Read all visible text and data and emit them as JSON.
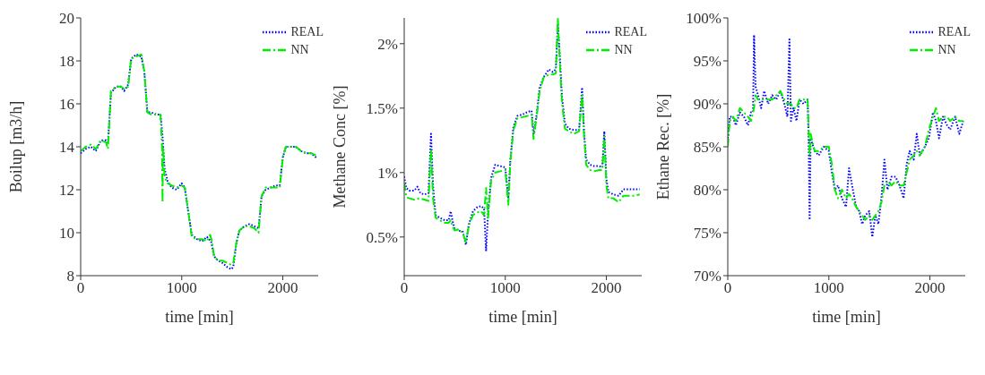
{
  "chart_data": [
    {
      "type": "line",
      "xlabel": "time [min]",
      "ylabel": "Boilup [m3/h]",
      "xlim": [
        0,
        2350
      ],
      "xticks": [
        0,
        1000,
        2000
      ],
      "ylim": [
        8,
        20
      ],
      "yticks": [
        8,
        10,
        12,
        14,
        16,
        18,
        20
      ],
      "legend": "top right",
      "marker": "none",
      "series": [
        {
          "name": "REAL",
          "color": "#0000ff",
          "line_style": "dotted",
          "x": [
            0,
            50,
            100,
            150,
            200,
            250,
            270,
            300,
            350,
            400,
            430,
            470,
            500,
            550,
            600,
            630,
            660,
            700,
            750,
            790,
            810,
            830,
            860,
            900,
            950,
            1000,
            1030,
            1070,
            1100,
            1150,
            1200,
            1250,
            1290,
            1320,
            1360,
            1400,
            1450,
            1490,
            1510,
            1540,
            1570,
            1620,
            1670,
            1720,
            1760,
            1790,
            1830,
            1880,
            1930,
            1970,
            2000,
            2030,
            2080,
            2130,
            2180,
            2230,
            2280,
            2330
          ],
          "values": [
            13.7,
            13.9,
            14.0,
            13.8,
            14.3,
            14.3,
            14.2,
            16.5,
            16.8,
            16.8,
            16.6,
            16.9,
            18.1,
            18.3,
            18.2,
            17.5,
            15.6,
            15.6,
            15.5,
            15.5,
            14.5,
            13.0,
            12.4,
            12.1,
            12.0,
            12.3,
            12.1,
            10.8,
            9.9,
            9.7,
            9.6,
            9.8,
            9.6,
            8.9,
            8.7,
            8.6,
            8.4,
            8.3,
            8.4,
            9.5,
            10.1,
            10.3,
            10.4,
            10.3,
            10.2,
            11.7,
            12.0,
            12.1,
            12.2,
            12.2,
            13.5,
            14.0,
            14.0,
            14.0,
            13.8,
            13.7,
            13.7,
            13.5
          ]
        },
        {
          "name": "NN",
          "color": "#00ee00",
          "line_style": "dashed",
          "x": [
            0,
            50,
            100,
            150,
            200,
            250,
            270,
            300,
            350,
            400,
            430,
            470,
            500,
            550,
            600,
            630,
            660,
            700,
            750,
            790,
            805,
            810,
            815,
            830,
            860,
            900,
            950,
            1000,
            1030,
            1070,
            1100,
            1150,
            1200,
            1250,
            1280,
            1300,
            1320,
            1360,
            1400,
            1450,
            1490,
            1510,
            1540,
            1570,
            1620,
            1670,
            1720,
            1760,
            1790,
            1830,
            1880,
            1930,
            1970,
            2000,
            2030,
            2080,
            2130,
            2180,
            2230,
            2280,
            2330
          ],
          "values": [
            13.8,
            14.0,
            14.1,
            13.9,
            14.3,
            14.2,
            13.9,
            16.6,
            16.8,
            16.8,
            16.7,
            16.8,
            18.1,
            18.2,
            18.3,
            17.5,
            15.6,
            15.5,
            15.5,
            15.5,
            14.0,
            11.4,
            14.0,
            12.6,
            12.3,
            12.2,
            12.1,
            12.2,
            12.1,
            10.8,
            9.8,
            9.7,
            9.7,
            9.6,
            9.9,
            9.6,
            8.9,
            8.7,
            8.7,
            8.6,
            8.5,
            8.6,
            9.5,
            10.1,
            10.3,
            10.3,
            10.2,
            10.0,
            11.7,
            12.1,
            12.1,
            12.1,
            12.1,
            13.5,
            14.0,
            14.0,
            14.0,
            13.8,
            13.7,
            13.7,
            13.6
          ]
        }
      ]
    },
    {
      "type": "line",
      "xlabel": "time [min]",
      "ylabel": "Methane Conc [%]",
      "xlim": [
        0,
        2350
      ],
      "xticks": [
        0,
        1000,
        2000
      ],
      "ylim": [
        0.2,
        2.2
      ],
      "yticks": [
        {
          "value": 0.5,
          "label": "0.5%"
        },
        {
          "value": 1,
          "label": "1%"
        },
        {
          "value": 1.5,
          "label": "1.5%"
        },
        {
          "value": 2,
          "label": "2%"
        }
      ],
      "legend": "top right",
      "marker": "none",
      "series": [
        {
          "name": "REAL",
          "color": "#0000ff",
          "line_style": "dotted",
          "x": [
            0,
            20,
            50,
            100,
            130,
            160,
            200,
            240,
            265,
            285,
            310,
            350,
            400,
            440,
            460,
            480,
            500,
            540,
            580,
            610,
            640,
            680,
            720,
            760,
            790,
            810,
            830,
            860,
            900,
            950,
            1000,
            1030,
            1050,
            1080,
            1120,
            1170,
            1220,
            1260,
            1280,
            1310,
            1340,
            1380,
            1430,
            1470,
            1500,
            1520,
            1540,
            1560,
            1590,
            1630,
            1680,
            1730,
            1760,
            1780,
            1800,
            1840,
            1880,
            1930,
            1960,
            1980,
            2000,
            2020,
            2070,
            2120,
            2170,
            2220,
            2280,
            2330
          ],
          "values": [
            0.97,
            0.88,
            0.86,
            0.86,
            0.89,
            0.84,
            0.83,
            0.84,
            1.3,
            0.9,
            0.67,
            0.65,
            0.63,
            0.63,
            0.7,
            0.62,
            0.56,
            0.55,
            0.54,
            0.44,
            0.6,
            0.7,
            0.73,
            0.74,
            0.72,
            0.39,
            0.7,
            0.96,
            1.06,
            1.05,
            1.04,
            0.8,
            1.1,
            1.35,
            1.44,
            1.45,
            1.47,
            1.48,
            1.3,
            1.45,
            1.66,
            1.74,
            1.8,
            1.78,
            1.8,
            2.15,
            1.9,
            1.6,
            1.38,
            1.34,
            1.33,
            1.33,
            1.66,
            1.3,
            1.1,
            1.06,
            1.05,
            1.05,
            1.04,
            1.32,
            0.95,
            0.85,
            0.83,
            0.82,
            0.87,
            0.87,
            0.87,
            0.87
          ]
        },
        {
          "name": "NN",
          "color": "#00ee00",
          "line_style": "dashed",
          "x": [
            0,
            20,
            50,
            100,
            150,
            200,
            240,
            265,
            285,
            310,
            350,
            400,
            440,
            460,
            480,
            500,
            540,
            580,
            610,
            640,
            680,
            720,
            760,
            790,
            810,
            830,
            860,
            900,
            950,
            1000,
            1030,
            1050,
            1080,
            1120,
            1170,
            1220,
            1260,
            1280,
            1310,
            1340,
            1380,
            1430,
            1470,
            1500,
            1520,
            1540,
            1560,
            1590,
            1630,
            1680,
            1730,
            1760,
            1780,
            1800,
            1840,
            1880,
            1930,
            1960,
            1980,
            2000,
            2020,
            2070,
            2120,
            2170,
            2220,
            2280,
            2330
          ],
          "values": [
            0.92,
            0.81,
            0.8,
            0.79,
            0.8,
            0.79,
            0.78,
            1.18,
            0.8,
            0.65,
            0.63,
            0.61,
            0.61,
            0.63,
            0.58,
            0.55,
            0.56,
            0.53,
            0.46,
            0.59,
            0.67,
            0.69,
            0.7,
            0.67,
            0.88,
            0.65,
            0.94,
            1.0,
            1.01,
            1.02,
            0.75,
            1.08,
            1.33,
            1.42,
            1.43,
            1.44,
            1.45,
            1.26,
            1.43,
            1.63,
            1.74,
            1.76,
            1.76,
            1.77,
            2.2,
            1.85,
            1.55,
            1.34,
            1.32,
            1.3,
            1.32,
            1.6,
            1.28,
            1.06,
            1.02,
            1.01,
            1.02,
            1.02,
            1.28,
            0.9,
            0.8,
            0.8,
            0.77,
            0.82,
            0.82,
            0.82,
            0.83
          ]
        }
      ]
    },
    {
      "type": "line",
      "xlabel": "time [min]",
      "ylabel": "Ethane Rec. [%]",
      "xlim": [
        0,
        2350
      ],
      "xticks": [
        0,
        1000,
        2000
      ],
      "ylim": [
        70,
        100
      ],
      "yticks": [
        {
          "value": 70,
          "label": "70%"
        },
        {
          "value": 75,
          "label": "75%"
        },
        {
          "value": 80,
          "label": "80%"
        },
        {
          "value": 85,
          "label": "85%"
        },
        {
          "value": 90,
          "label": "90%"
        },
        {
          "value": 95,
          "label": "95%"
        },
        {
          "value": 100,
          "label": "100%"
        }
      ],
      "legend": "top right",
      "marker": "none",
      "series": [
        {
          "name": "REAL",
          "color": "#0000ff",
          "line_style": "dotted",
          "x": [
            0,
            20,
            50,
            80,
            120,
            160,
            200,
            230,
            250,
            260,
            275,
            300,
            330,
            360,
            400,
            440,
            480,
            520,
            560,
            590,
            610,
            625,
            650,
            680,
            710,
            750,
            790,
            800,
            810,
            820,
            860,
            900,
            950,
            1000,
            1030,
            1060,
            1090,
            1130,
            1170,
            1200,
            1230,
            1270,
            1300,
            1330,
            1360,
            1400,
            1430,
            1460,
            1490,
            1520,
            1550,
            1580,
            1620,
            1660,
            1700,
            1740,
            1770,
            1800,
            1840,
            1870,
            1900,
            1950,
            1990,
            2030,
            2060,
            2090,
            2130,
            2170,
            2200,
            2250,
            2290,
            2330
          ],
          "values": [
            86,
            88.5,
            88.5,
            87.5,
            89,
            88.5,
            87.5,
            89,
            89,
            98,
            92,
            91,
            89.5,
            91.5,
            90,
            91,
            90.5,
            91.5,
            90,
            88.5,
            97.5,
            88,
            89.5,
            88,
            90.5,
            90,
            90.5,
            86,
            76.5,
            86,
            84.5,
            84,
            85,
            84.5,
            82,
            80,
            80.5,
            79,
            78,
            82.5,
            80.5,
            78,
            77.5,
            76,
            77,
            77.5,
            74.5,
            77,
            76,
            79,
            83.5,
            80,
            81.5,
            81.5,
            80.5,
            79,
            83,
            84.5,
            83.5,
            86.5,
            84,
            85,
            86,
            89,
            88,
            86,
            88.5,
            87.5,
            87,
            88.5,
            86.5,
            88
          ]
        },
        {
          "name": "NN",
          "color": "#00ee00",
          "line_style": "dashed",
          "x": [
            0,
            20,
            50,
            80,
            120,
            160,
            200,
            230,
            260,
            275,
            300,
            330,
            360,
            400,
            440,
            480,
            520,
            560,
            590,
            625,
            650,
            680,
            710,
            750,
            790,
            810,
            820,
            860,
            900,
            950,
            1000,
            1030,
            1060,
            1090,
            1130,
            1170,
            1200,
            1230,
            1270,
            1300,
            1330,
            1360,
            1400,
            1430,
            1460,
            1490,
            1520,
            1550,
            1580,
            1620,
            1660,
            1700,
            1740,
            1770,
            1800,
            1840,
            1870,
            1900,
            1950,
            1990,
            2030,
            2060,
            2090,
            2130,
            2170,
            2200,
            2250,
            2290,
            2330
          ],
          "values": [
            85,
            88,
            88.5,
            88,
            89.5,
            89,
            88.5,
            88,
            89.5,
            91,
            90.5,
            90.5,
            90.5,
            90.5,
            90.5,
            91,
            91.5,
            90.5,
            90,
            90,
            89.5,
            89.5,
            90.5,
            90.5,
            90.5,
            84,
            86.5,
            84.5,
            84.5,
            85,
            85,
            83,
            80,
            79,
            80,
            79,
            79.5,
            79,
            78,
            77.5,
            77,
            76.5,
            77,
            76.5,
            77,
            77.5,
            78.5,
            80.5,
            81,
            80.5,
            81,
            80.5,
            80.5,
            82,
            83.5,
            84,
            84.5,
            84,
            85,
            87,
            88.5,
            89.5,
            88,
            88.5,
            88.5,
            88,
            88.5,
            88,
            88
          ]
        }
      ]
    }
  ]
}
